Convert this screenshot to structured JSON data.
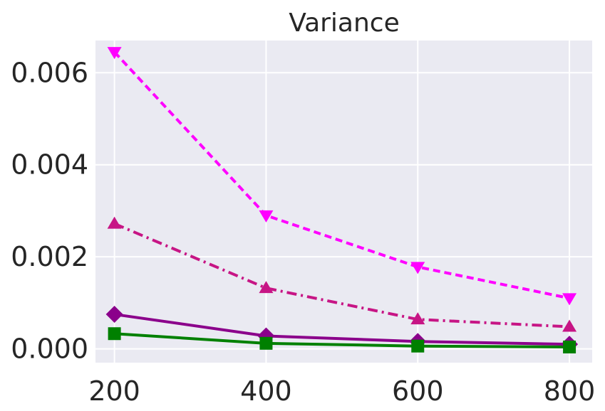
{
  "chart_data": {
    "type": "line",
    "title": "Variance",
    "xlabel": "",
    "ylabel": "",
    "x": [
      200,
      400,
      600,
      800
    ],
    "xlim": [
      175,
      830
    ],
    "ylim": [
      -0.0003,
      0.0067
    ],
    "xticks": [
      200,
      400,
      600,
      800
    ],
    "xtick_labels": [
      "200",
      "400",
      "600",
      "800"
    ],
    "yticks": [
      0.0,
      0.002,
      0.004,
      0.006
    ],
    "ytick_labels": [
      "0.000",
      "0.002",
      "0.004",
      "0.006"
    ],
    "grid": true,
    "background": "#eaeaf2",
    "series": [
      {
        "values": [
          0.00645,
          0.0029,
          0.00178,
          0.0011
        ],
        "color": "#ff00ff",
        "linestyle": "dashed",
        "marker": "triangle-down"
      },
      {
        "values": [
          0.00272,
          0.00132,
          0.00064,
          0.00048
        ],
        "color": "#c71585",
        "linestyle": "dashdot",
        "marker": "triangle-up"
      },
      {
        "values": [
          0.00075,
          0.00028,
          0.00016,
          0.0001
        ],
        "color": "#8b008b",
        "linestyle": "solid",
        "marker": "diamond"
      },
      {
        "values": [
          0.00033,
          0.00012,
          6e-05,
          4e-05
        ],
        "color": "#008000",
        "linestyle": "solid",
        "marker": "square"
      }
    ]
  }
}
